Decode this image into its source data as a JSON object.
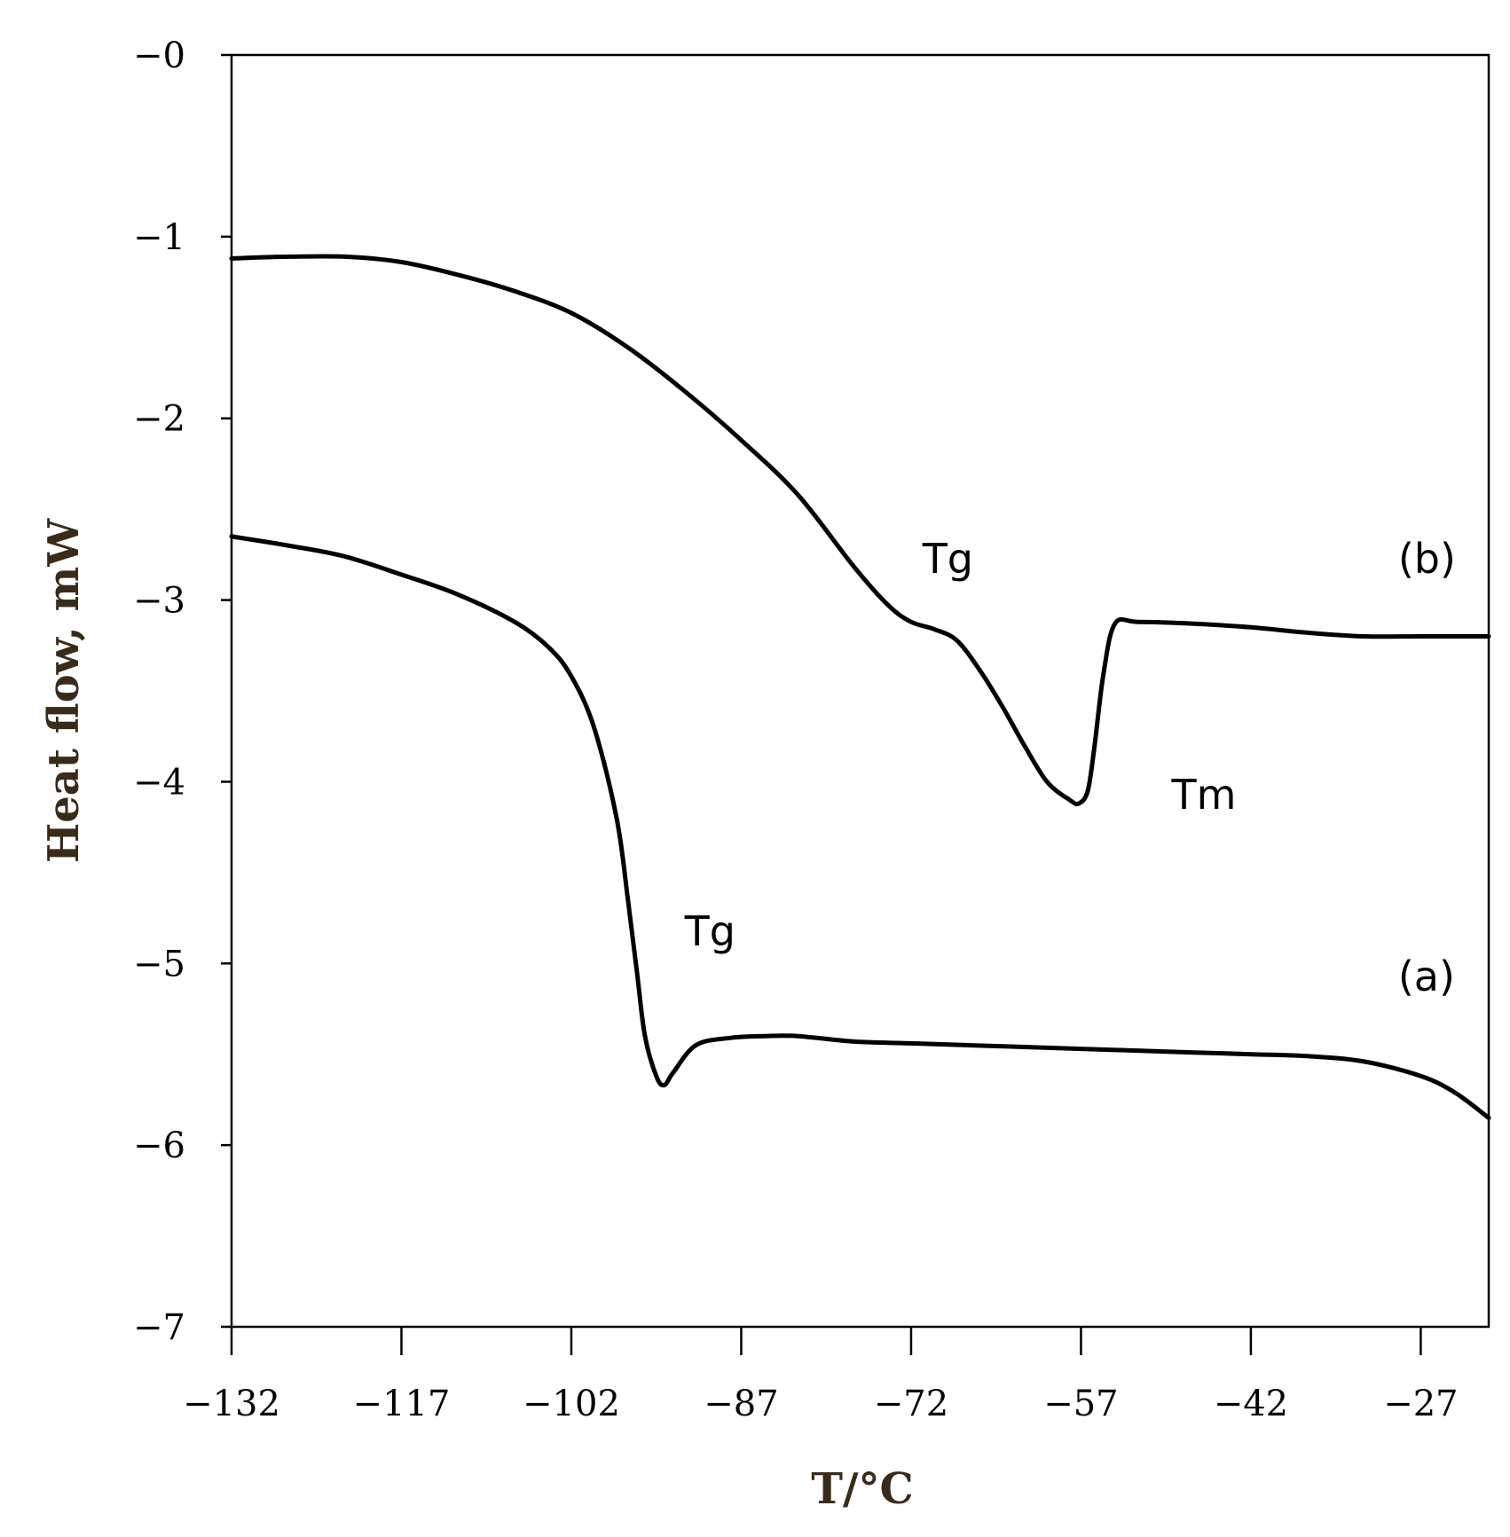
{
  "chart_data": {
    "type": "line",
    "xlabel": "T/°C",
    "ylabel": "Heat flow, mW",
    "xlim": [
      -132,
      -21
    ],
    "ylim": [
      -7,
      0
    ],
    "x_ticks": [
      "−132",
      "−117",
      "−102",
      "−87",
      "−72",
      "−57",
      "−42",
      "−27"
    ],
    "x_tick_values": [
      -132,
      -117,
      -102,
      -87,
      -72,
      -57,
      -42,
      -27
    ],
    "y_ticks": [
      "−0",
      "−1",
      "−2",
      "−3",
      "−4",
      "−5",
      "−6",
      "−7"
    ],
    "y_tick_values": [
      0,
      -1,
      -2,
      -3,
      -4,
      -5,
      -6,
      -7
    ],
    "grid": false,
    "colors": {
      "line": "#000000",
      "axis_title": "#3a2a1a"
    },
    "series": [
      {
        "name": "(b)",
        "x": [
          -132,
          -127,
          -122,
          -117,
          -112,
          -107,
          -102,
          -97,
          -92,
          -87,
          -82,
          -77,
          -74,
          -72,
          -70,
          -68,
          -66,
          -64,
          -62,
          -60,
          -58,
          -57.2,
          -56.4,
          -55.8,
          -55,
          -54,
          -52,
          -47,
          -42,
          -37,
          -32,
          -27,
          -21
        ],
        "y": [
          -1.12,
          -1.11,
          -1.11,
          -1.14,
          -1.21,
          -1.3,
          -1.42,
          -1.61,
          -1.85,
          -2.12,
          -2.42,
          -2.82,
          -3.03,
          -3.12,
          -3.16,
          -3.22,
          -3.38,
          -3.58,
          -3.8,
          -4.0,
          -4.1,
          -4.12,
          -4.05,
          -3.8,
          -3.4,
          -3.13,
          -3.12,
          -3.13,
          -3.15,
          -3.18,
          -3.2,
          -3.2,
          -3.2
        ]
      },
      {
        "name": "(a)",
        "x": [
          -132,
          -127,
          -122,
          -117,
          -112,
          -107,
          -104,
          -102,
          -100,
          -98,
          -97,
          -96.2,
          -95.5,
          -94.5,
          -93.8,
          -93,
          -91,
          -88,
          -85,
          -82,
          -77,
          -72,
          -67,
          -62,
          -57,
          -52,
          -47,
          -42,
          -37,
          -32,
          -27,
          -24,
          -21
        ],
        "y": [
          -2.65,
          -2.7,
          -2.76,
          -2.86,
          -2.97,
          -3.12,
          -3.26,
          -3.42,
          -3.7,
          -4.2,
          -4.65,
          -5.05,
          -5.4,
          -5.62,
          -5.67,
          -5.6,
          -5.45,
          -5.41,
          -5.4,
          -5.4,
          -5.43,
          -5.44,
          -5.45,
          -5.46,
          -5.47,
          -5.48,
          -5.49,
          -5.5,
          -5.51,
          -5.54,
          -5.62,
          -5.71,
          -5.85
        ]
      }
    ],
    "annotations": [
      {
        "text": "Tg",
        "x": -71,
        "y": -2.85
      },
      {
        "text": "(b)",
        "x": -29,
        "y": -2.85
      },
      {
        "text": "Tm",
        "x": -49,
        "y": -4.15
      },
      {
        "text": "Tg",
        "x": -92,
        "y": -4.9
      },
      {
        "text": "(a)",
        "x": -29,
        "y": -5.15
      }
    ]
  }
}
